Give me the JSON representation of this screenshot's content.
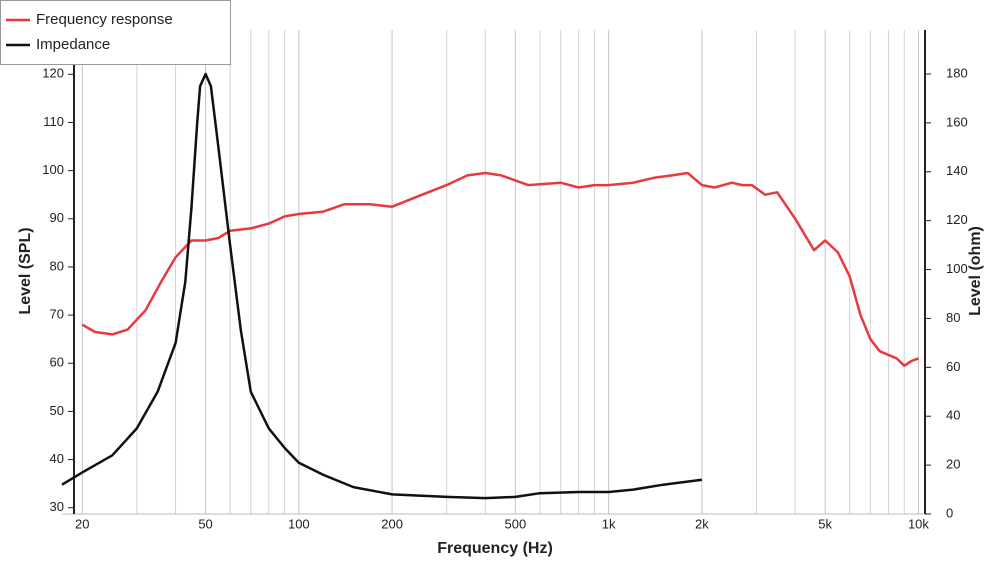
{
  "chart_data": {
    "type": "line",
    "xlabel": "Frequency (Hz)",
    "ylabel": "Level (SPL)",
    "y2label": "Level (ohm)",
    "xscale": "log",
    "grid": "x",
    "legend": "top-left",
    "xlim": [
      17.2,
      10500
    ],
    "xticks": [
      20,
      50,
      100,
      200,
      500,
      {
        "value": 1000,
        "label": "1k"
      },
      {
        "value": 2000,
        "label": "2k"
      },
      {
        "value": 5000,
        "label": "5k"
      },
      {
        "value": 10000,
        "label": "10k"
      }
    ],
    "xminorticks": [
      30,
      40,
      60,
      70,
      80,
      90,
      300,
      400,
      600,
      700,
      800,
      900,
      3000,
      4000,
      6000,
      7000,
      8000,
      9000
    ],
    "ylim": [
      28.7,
      129.2
    ],
    "yticks": [
      30,
      40,
      50,
      60,
      70,
      80,
      90,
      100,
      110,
      120
    ],
    "y2lim": [
      0,
      198
    ],
    "y2ticks": [
      0,
      20,
      40,
      60,
      80,
      100,
      120,
      140,
      160,
      180
    ],
    "series": [
      {
        "name": "Frequency response",
        "color": "#e8393f",
        "x": [
          20,
          22,
          25,
          28,
          32,
          36,
          40,
          45,
          50,
          55,
          60,
          70,
          80,
          90,
          100,
          120,
          140,
          170,
          200,
          250,
          300,
          350,
          400,
          450,
          550,
          700,
          800,
          900,
          1000,
          1200,
          1400,
          1600,
          1800,
          2000,
          2200,
          2500,
          2700,
          2900,
          3200,
          3500,
          4000,
          4600,
          5000,
          5500,
          6000,
          6500,
          7000,
          7500,
          8500,
          9000,
          9500,
          10000
        ],
        "values": [
          68,
          66.5,
          66,
          67,
          71,
          77,
          82,
          85.5,
          85.5,
          86,
          87.5,
          88,
          89,
          90.5,
          91,
          91.5,
          93,
          93,
          92.5,
          95,
          97,
          99,
          99.5,
          99,
          97,
          97.5,
          96.5,
          97,
          97,
          97.5,
          98.5,
          99,
          99.5,
          97,
          96.5,
          97.5,
          97,
          97,
          95,
          95.5,
          90,
          83.5,
          85.5,
          83,
          78,
          70,
          65,
          62.5,
          61,
          59.5,
          60.5,
          61
        ]
      },
      {
        "name": "Impedance",
        "color": "#111111",
        "axis": "y2",
        "x": [
          17.2,
          20,
          25,
          30,
          35,
          40,
          43,
          45,
          47,
          48,
          50,
          52,
          55,
          60,
          65,
          70,
          80,
          90,
          100,
          120,
          150,
          200,
          300,
          400,
          500,
          600,
          800,
          1000,
          1200,
          1500,
          2000
        ],
        "values": [
          12,
          17,
          24,
          35,
          50,
          70,
          95,
          125,
          160,
          175,
          180,
          175,
          150,
          110,
          75,
          50,
          35,
          27,
          21,
          16,
          11,
          8,
          7,
          6.5,
          7,
          8.5,
          9,
          9,
          10,
          12,
          14
        ]
      }
    ]
  }
}
